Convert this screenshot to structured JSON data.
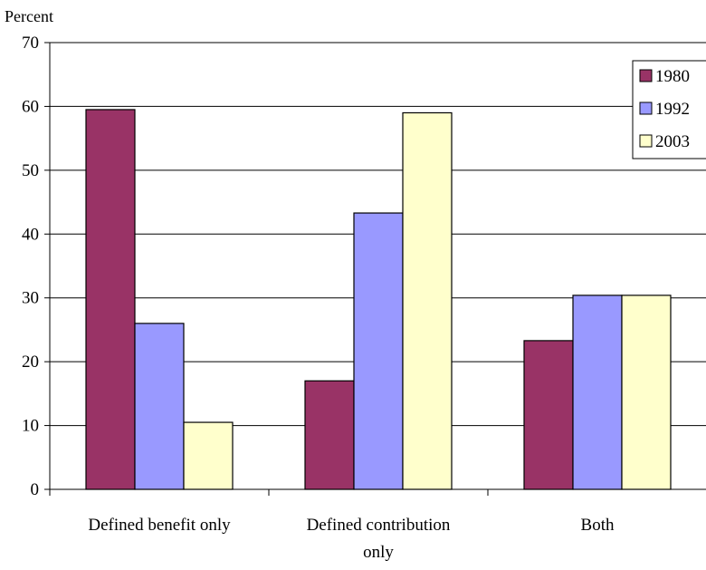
{
  "chart_data": {
    "type": "bar",
    "title": "",
    "ylabel": "Percent",
    "xlabel": "",
    "ylim": [
      0,
      70
    ],
    "yticks": [
      0,
      10,
      20,
      30,
      40,
      50,
      60,
      70
    ],
    "grid": true,
    "legend_position": "top-right",
    "categories": [
      [
        "Defined benefit only"
      ],
      [
        "Defined contribution",
        "only"
      ],
      [
        "Both"
      ]
    ],
    "series": [
      {
        "name": "1980",
        "color": "#993366",
        "values": [
          59.5,
          17.0,
          23.3
        ]
      },
      {
        "name": "1992",
        "color": "#9999FF",
        "values": [
          26.0,
          43.3,
          30.4
        ]
      },
      {
        "name": "2003",
        "color": "#FFFFCC",
        "values": [
          10.5,
          59.0,
          30.4
        ]
      }
    ]
  }
}
